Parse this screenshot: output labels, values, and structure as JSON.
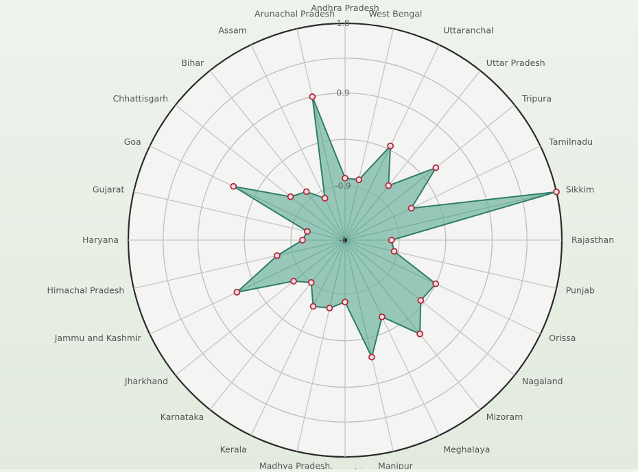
{
  "chart_data": {
    "type": "radar",
    "categories": [
      "Andhra Pradesh",
      "West Bengal",
      "Uttaranchal",
      "Uttar Pradesh",
      "Tripura",
      "Tamilnadu",
      "Sikkim",
      "Rajasthan",
      "Punjab",
      "Orissa",
      "Nagaland",
      "Mizoram",
      "Meghalaya",
      "Manipur",
      "Maharashtra",
      "Madhya Pradesh",
      "Kerala",
      "Karnataka",
      "Jharkhand",
      "Jammu and Kashmir",
      "Himachal Pradesh",
      "Haryana",
      "Gujarat",
      "Goa",
      "Chhattisgarh",
      "Bihar",
      "Assam",
      "Arunachal Pradesh"
    ],
    "series": [
      {
        "values": [
          -0.2,
          -0.2,
          0.35,
          -0.1,
          0.5,
          -0.05,
          1.8,
          -0.4,
          -0.35,
          0.3,
          0.25,
          0.55,
          0.1,
          0.55,
          -0.2,
          -0.1,
          -0.05,
          -0.3,
          -0.15,
          0.55,
          -0.1,
          -0.45,
          -0.5,
          0.6,
          -0.1,
          -0.2,
          -0.4,
          0.9
        ]
      }
    ],
    "tick_labels": [
      "-1",
      "-0.9",
      "0.9",
      "1.8"
    ],
    "rlim": [
      -1,
      1.8
    ],
    "rings": [
      -1,
      -0.3,
      0.3,
      0.9,
      1.35,
      1.8
    ],
    "grid": true,
    "colors": {
      "fill": "#6fb3a0",
      "line": "#2e7d68",
      "marker": "#b0283c"
    }
  }
}
